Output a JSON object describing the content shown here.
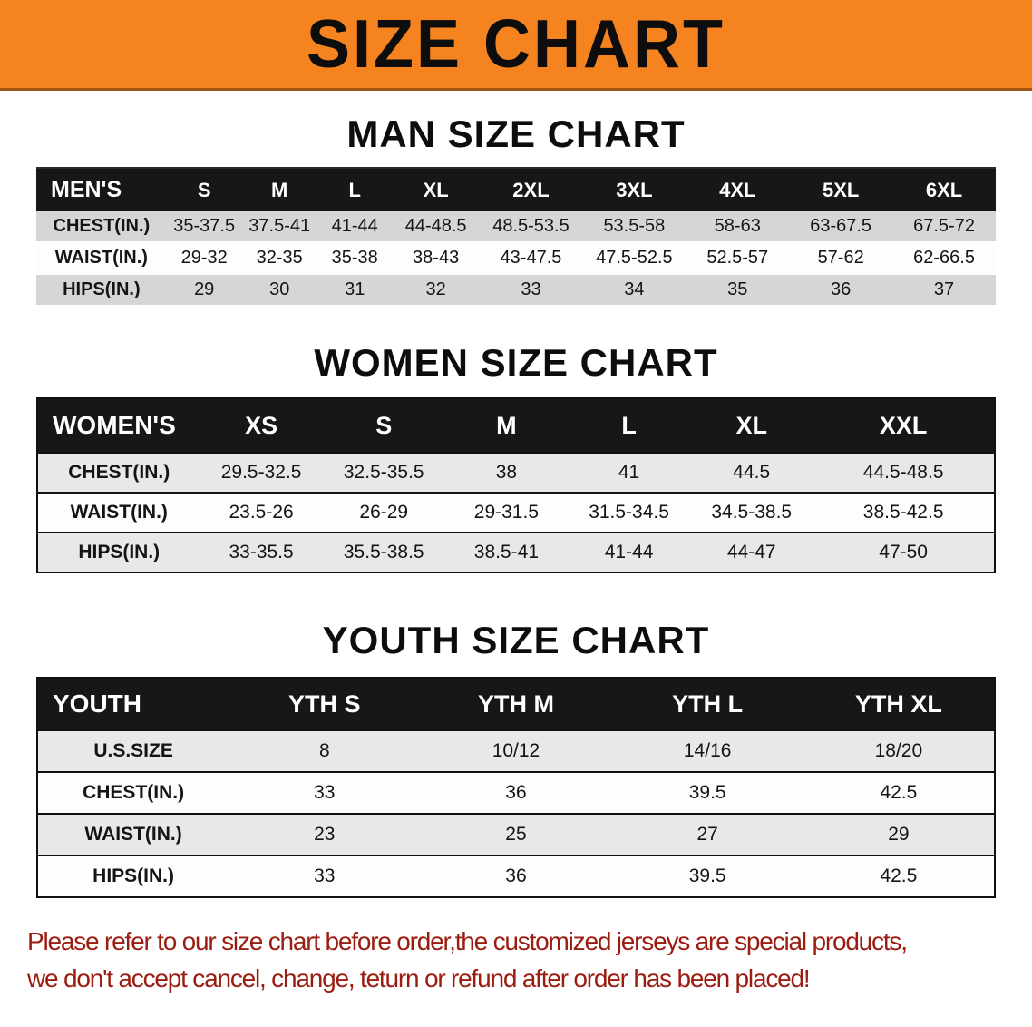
{
  "banner": {
    "title": "SIZE CHART"
  },
  "colors": {
    "banner-orange": "#f5831f",
    "header-black": "#171717",
    "stripe-gray-men": "#d6d6d6",
    "stripe-gray": "#e8e8e8",
    "disclaimer-red": "#9b1c10"
  },
  "sections": [
    {
      "heading": "MAN SIZE CHART",
      "table": {
        "header": [
          "MEN'S",
          "S",
          "M",
          "L",
          "XL",
          "2XL",
          "3XL",
          "4XL",
          "5XL",
          "6XL"
        ],
        "rows": [
          [
            "CHEST(IN.)",
            "35-37.5",
            "37.5-41",
            "41-44",
            "44-48.5",
            "48.5-53.5",
            "53.5-58",
            "58-63",
            "63-67.5",
            "67.5-72"
          ],
          [
            "WAIST(IN.)",
            "29-32",
            "32-35",
            "35-38",
            "38-43",
            "43-47.5",
            "47.5-52.5",
            "52.5-57",
            "57-62",
            "62-66.5"
          ],
          [
            "HIPS(IN.)",
            "29",
            "30",
            "31",
            "32",
            "33",
            "34",
            "35",
            "36",
            "37"
          ]
        ]
      }
    },
    {
      "heading": "WOMEN SIZE CHART",
      "table": {
        "header": [
          "WOMEN'S",
          "XS",
          "S",
          "M",
          "L",
          "XL",
          "XXL"
        ],
        "rows": [
          [
            "CHEST(IN.)",
            "29.5-32.5",
            "32.5-35.5",
            "38",
            "41",
            "44.5",
            "44.5-48.5"
          ],
          [
            "WAIST(IN.)",
            "23.5-26",
            "26-29",
            "29-31.5",
            "31.5-34.5",
            "34.5-38.5",
            "38.5-42.5"
          ],
          [
            "HIPS(IN.)",
            "33-35.5",
            "35.5-38.5",
            "38.5-41",
            "41-44",
            "44-47",
            "47-50"
          ]
        ]
      }
    },
    {
      "heading": "YOUTH SIZE CHART",
      "table": {
        "header": [
          "YOUTH",
          "YTH S",
          "YTH M",
          "YTH L",
          "YTH XL"
        ],
        "rows": [
          [
            "U.S.SIZE",
            "8",
            "10/12",
            "14/16",
            "18/20"
          ],
          [
            "CHEST(IN.)",
            "33",
            "36",
            "39.5",
            "42.5"
          ],
          [
            "WAIST(IN.)",
            "23",
            "25",
            "27",
            "29"
          ],
          [
            "HIPS(IN.)",
            "33",
            "36",
            "39.5",
            "42.5"
          ]
        ]
      }
    }
  ],
  "disclaimer": {
    "line1": "Please refer to our size chart before order,the customized jerseys are special products,",
    "line2": "we don't accept cancel, change, teturn or refund after order has been placed!"
  }
}
